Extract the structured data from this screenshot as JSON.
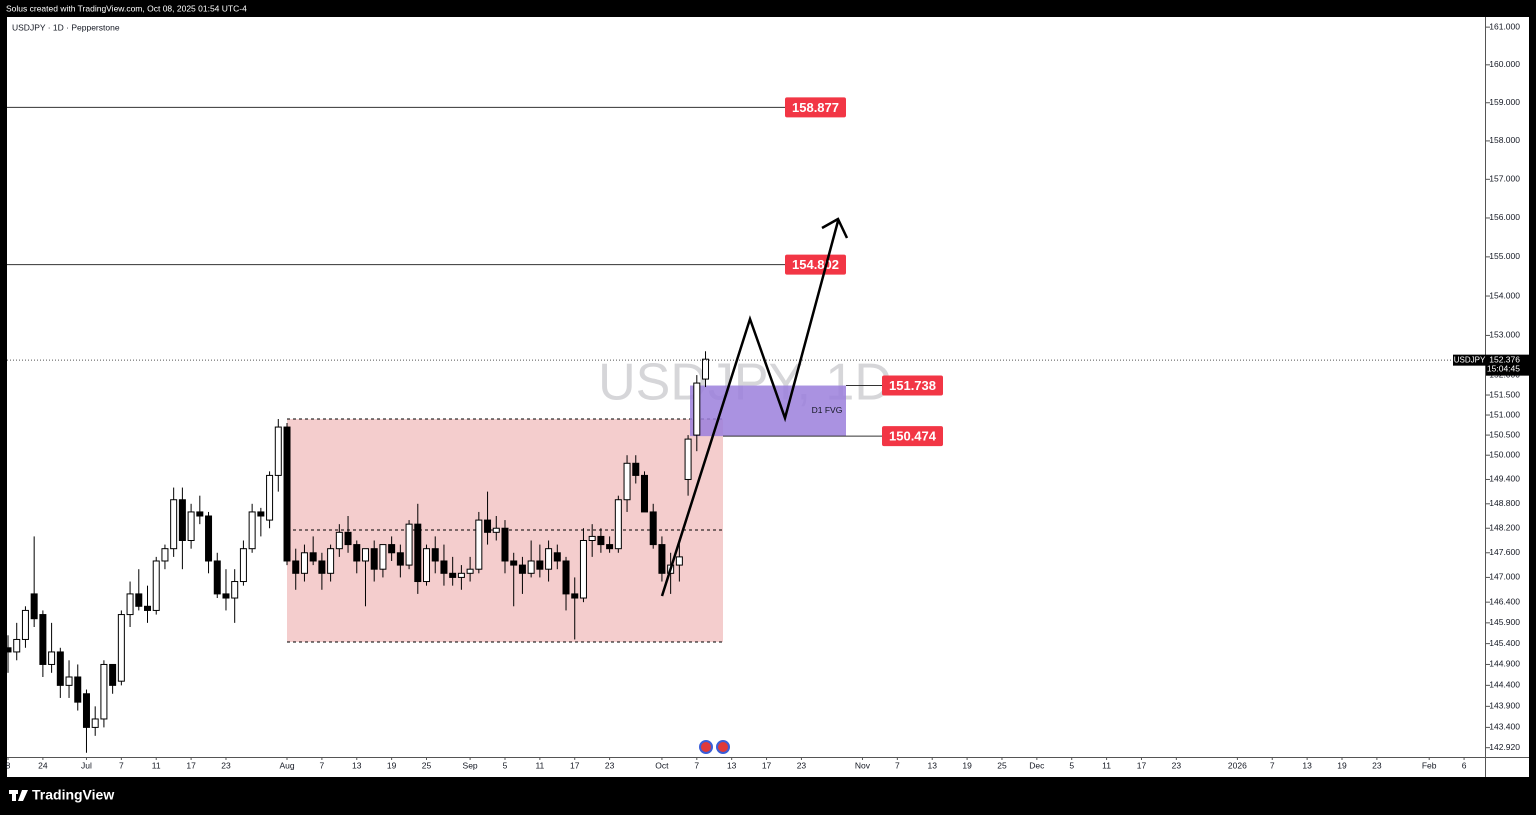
{
  "header": {
    "attribution": "Solus created with TradingView.com, Oct 08, 2025 01:54 UTC-4"
  },
  "chart_data": {
    "type": "candlestick",
    "title": "USDJPY · 1D · Pepperstone",
    "watermark": "USDJPY, 1D",
    "open": [
      145.3,
      145.2,
      145.5,
      146.6,
      146.1,
      144.9,
      145.2,
      144.4,
      144.6,
      144.2,
      143.4,
      143.6,
      144.9,
      144.5,
      146.1,
      146.6,
      146.3,
      146.2,
      147.4,
      147.7,
      148.9,
      147.9,
      148.6,
      148.5,
      147.4,
      146.6,
      146.5,
      146.9,
      147.7,
      148.6,
      148.4,
      149.5,
      150.7,
      147.4,
      147.1,
      147.6,
      147.4,
      147.1,
      147.7,
      148.1,
      147.8,
      147.4,
      147.7,
      147.2,
      147.8,
      147.6,
      147.3,
      148.3,
      146.9,
      147.7,
      147.4,
      147.1,
      147.0,
      147.1,
      147.2,
      148.4,
      148.1,
      148.2,
      147.4,
      147.3,
      147.1,
      147.4,
      147.2,
      147.6,
      147.4,
      146.6,
      146.5,
      147.9,
      148.0,
      147.8,
      147.7,
      148.9,
      149.8,
      149.5,
      148.6,
      147.8,
      147.1,
      147.3,
      149.4,
      150.5,
      151.9
    ],
    "high": [
      145.6,
      145.9,
      146.3,
      148.0,
      146.2,
      145.9,
      145.3,
      145.0,
      144.9,
      144.3,
      143.9,
      145.0,
      144.9,
      146.2,
      146.9,
      147.2,
      146.8,
      147.5,
      147.8,
      149.2,
      149.2,
      148.8,
      149.0,
      148.6,
      147.6,
      147.2,
      147.2,
      147.9,
      148.8,
      148.7,
      149.6,
      150.9,
      150.8,
      147.7,
      147.8,
      148.0,
      147.6,
      147.8,
      148.3,
      148.5,
      147.9,
      147.7,
      147.9,
      147.8,
      148.0,
      147.8,
      148.4,
      148.8,
      147.8,
      148.0,
      147.8,
      147.5,
      147.3,
      147.5,
      148.6,
      149.1,
      148.5,
      148.4,
      147.6,
      147.5,
      147.9,
      147.8,
      147.9,
      147.8,
      147.5,
      147.0,
      148.2,
      148.3,
      148.2,
      148.0,
      149.0,
      150.0,
      150.0,
      149.6,
      148.8,
      148.0,
      147.6,
      147.9,
      150.5,
      152.0,
      152.6
    ],
    "low": [
      144.7,
      145.0,
      145.3,
      145.8,
      144.6,
      144.7,
      144.1,
      144.1,
      143.8,
      142.8,
      143.2,
      143.4,
      144.2,
      144.4,
      145.8,
      146.2,
      145.9,
      146.1,
      147.2,
      147.5,
      147.2,
      147.7,
      148.3,
      147.1,
      146.5,
      146.2,
      145.9,
      146.8,
      147.6,
      148.0,
      148.2,
      149.1,
      147.3,
      146.7,
      146.9,
      147.3,
      146.7,
      146.9,
      147.5,
      147.6,
      147.1,
      146.3,
      146.9,
      147.0,
      147.4,
      147.0,
      147.2,
      146.6,
      146.8,
      147.1,
      146.8,
      146.8,
      146.7,
      146.9,
      147.1,
      147.8,
      147.9,
      147.1,
      146.3,
      146.6,
      147.0,
      147.0,
      146.9,
      147.2,
      146.2,
      145.5,
      146.4,
      147.5,
      147.6,
      147.6,
      147.6,
      148.6,
      149.3,
      148.6,
      147.7,
      146.9,
      146.6,
      146.9,
      149.0,
      150.1,
      151.7
    ],
    "close": [
      145.2,
      145.5,
      146.2,
      146.0,
      144.9,
      145.2,
      144.4,
      144.6,
      144.0,
      143.4,
      143.6,
      144.9,
      144.4,
      146.1,
      146.6,
      146.3,
      146.2,
      147.4,
      147.7,
      148.9,
      147.9,
      148.6,
      148.5,
      147.4,
      146.6,
      146.5,
      146.9,
      147.7,
      148.6,
      148.5,
      149.5,
      150.7,
      147.4,
      147.1,
      147.6,
      147.4,
      147.1,
      147.7,
      148.1,
      147.8,
      147.4,
      147.7,
      147.2,
      147.8,
      147.6,
      147.3,
      148.3,
      146.9,
      147.7,
      147.4,
      147.1,
      147.0,
      147.1,
      147.2,
      148.4,
      148.1,
      148.2,
      147.4,
      147.3,
      147.1,
      147.4,
      147.2,
      147.7,
      147.4,
      146.6,
      146.5,
      147.9,
      148.0,
      147.8,
      147.7,
      148.9,
      149.8,
      149.5,
      148.6,
      147.8,
      147.1,
      147.3,
      147.5,
      150.4,
      151.8,
      152.4
    ],
    "up_color": "#ffffff",
    "down_color": "#000000",
    "outline_color": "#000000",
    "ylim": [
      142.7,
      161.27
    ],
    "log_scale": true,
    "yticks": [
      {
        "value": 161,
        "label": "161.000"
      },
      {
        "value": 160,
        "label": "160.000"
      },
      {
        "value": 159,
        "label": "159.000"
      },
      {
        "value": 158,
        "label": "158.000"
      },
      {
        "value": 157,
        "label": "157.000"
      },
      {
        "value": 156,
        "label": "156.000"
      },
      {
        "value": 155,
        "label": "155.000"
      },
      {
        "value": 154,
        "label": "154.000"
      },
      {
        "value": 153,
        "label": "153.000"
      },
      {
        "value": 152,
        "label": "152.000"
      },
      {
        "value": 151.5,
        "label": "151.500"
      },
      {
        "value": 151,
        "label": "151.000"
      },
      {
        "value": 150.5,
        "label": "150.500"
      },
      {
        "value": 150,
        "label": "150.000"
      },
      {
        "value": 149.4,
        "label": "149.400"
      },
      {
        "value": 148.8,
        "label": "148.800"
      },
      {
        "value": 148.2,
        "label": "148.200"
      },
      {
        "value": 147.6,
        "label": "147.600"
      },
      {
        "value": 147,
        "label": "147.000"
      },
      {
        "value": 146.4,
        "label": "146.400"
      },
      {
        "value": 145.9,
        "label": "145.900"
      },
      {
        "value": 145.4,
        "label": "145.400"
      },
      {
        "value": 144.9,
        "label": "144.900"
      },
      {
        "value": 144.4,
        "label": "144.400"
      },
      {
        "value": 143.9,
        "label": "143.900"
      },
      {
        "value": 143.4,
        "label": "143.400"
      },
      {
        "value": 142.92,
        "label": "142.920"
      }
    ],
    "xlim": [
      -0.115,
      169.4
    ],
    "xticks": [
      {
        "value": 0,
        "label": "8"
      },
      {
        "value": 4,
        "label": "24"
      },
      {
        "value": 9,
        "label": "Jul"
      },
      {
        "value": 13,
        "label": "7"
      },
      {
        "value": 17,
        "label": "11"
      },
      {
        "value": 21,
        "label": "17"
      },
      {
        "value": 25,
        "label": "23"
      },
      {
        "value": 32,
        "label": "Aug"
      },
      {
        "value": 36,
        "label": "7"
      },
      {
        "value": 40,
        "label": "13"
      },
      {
        "value": 44,
        "label": "19"
      },
      {
        "value": 48,
        "label": "25"
      },
      {
        "value": 53,
        "label": "Sep"
      },
      {
        "value": 57,
        "label": "5"
      },
      {
        "value": 61,
        "label": "11"
      },
      {
        "value": 65,
        "label": "17"
      },
      {
        "value": 69,
        "label": "23"
      },
      {
        "value": 75,
        "label": "Oct"
      },
      {
        "value": 79,
        "label": "7"
      },
      {
        "value": 83,
        "label": "13"
      },
      {
        "value": 87,
        "label": "17"
      },
      {
        "value": 91,
        "label": "23"
      },
      {
        "value": 98,
        "label": "Nov"
      },
      {
        "value": 102,
        "label": "7"
      },
      {
        "value": 106,
        "label": "13"
      },
      {
        "value": 110,
        "label": "19"
      },
      {
        "value": 114,
        "label": "25"
      },
      {
        "value": 118,
        "label": "Dec"
      },
      {
        "value": 122,
        "label": "5"
      },
      {
        "value": 126,
        "label": "11"
      },
      {
        "value": 130,
        "label": "17"
      },
      {
        "value": 134,
        "label": "23"
      },
      {
        "value": 141,
        "label": "2026"
      },
      {
        "value": 145,
        "label": "7"
      },
      {
        "value": 149,
        "label": "13"
      },
      {
        "value": 153,
        "label": "19"
      },
      {
        "value": 157,
        "label": "23"
      },
      {
        "value": 163,
        "label": "Feb"
      },
      {
        "value": 167,
        "label": "6"
      }
    ],
    "levels": [
      158.877,
      154.802,
      151.738,
      150.474
    ],
    "level_color": "#f23645",
    "zone_label": "D1 FVG",
    "zone_color": "#9b7fdc",
    "last_price": {
      "symbol": "USDJPY",
      "value": 152.376,
      "countdown": "15:04:45"
    }
  },
  "footer": {
    "brand": "TradingView"
  }
}
